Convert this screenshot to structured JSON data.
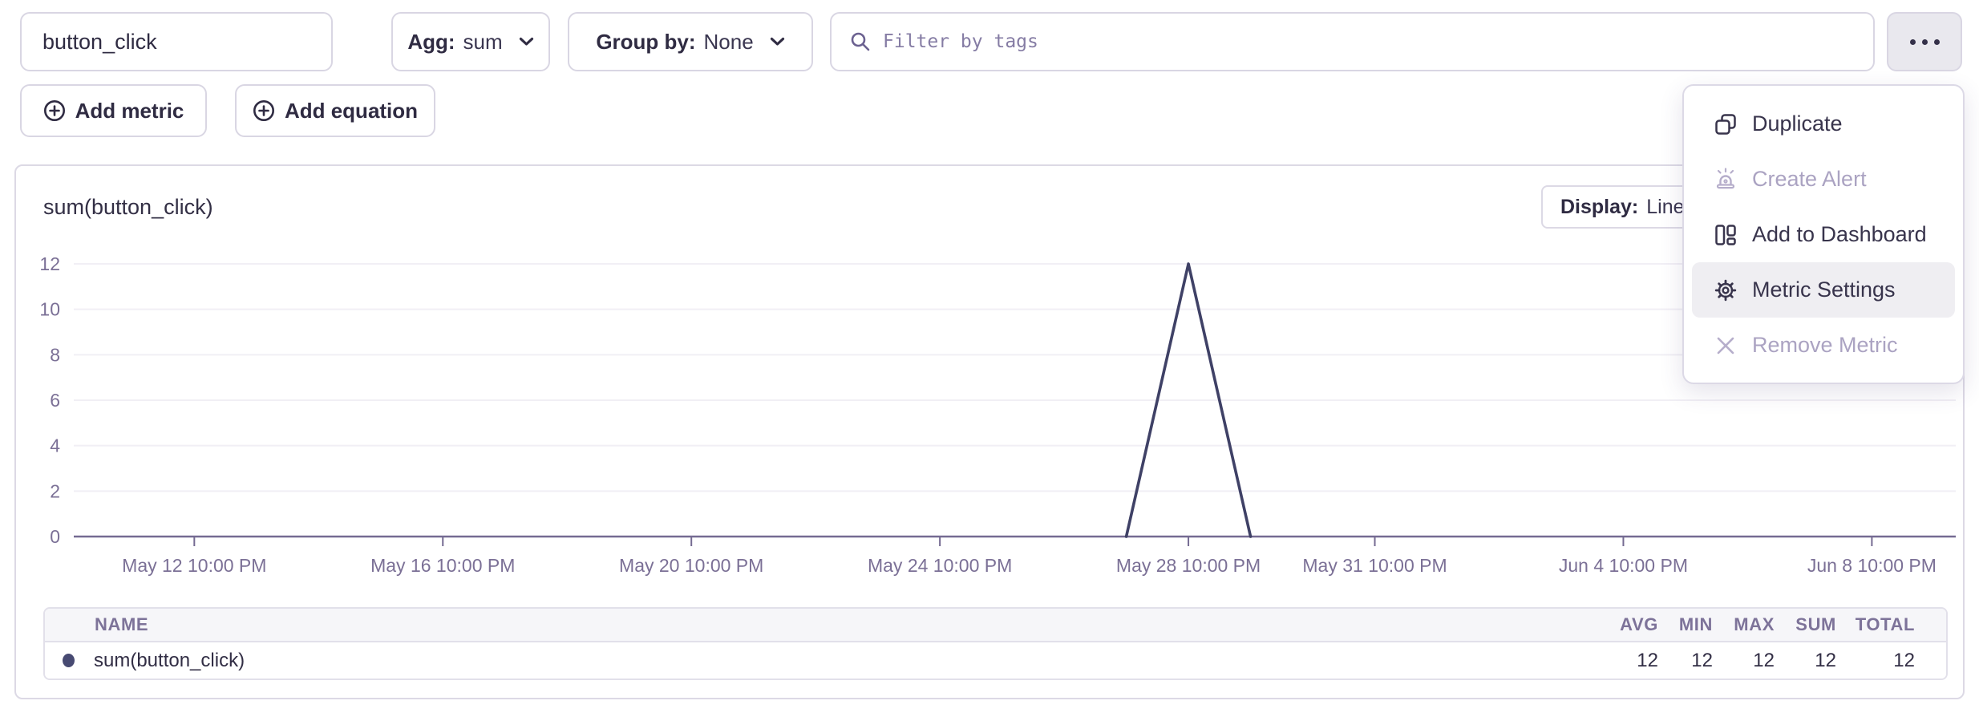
{
  "toolbar": {
    "metric_name": "button_click",
    "agg_label": "Agg:",
    "agg_value": "sum",
    "groupby_label": "Group by:",
    "groupby_value": "None",
    "filter_placeholder": "Filter by tags"
  },
  "actions": {
    "add_metric": "Add metric",
    "add_equation": "Add equation"
  },
  "panel": {
    "title": "sum(button_click)",
    "display_label": "Display:",
    "display_value": "Line"
  },
  "menu": {
    "items": [
      {
        "label": "Duplicate",
        "icon": "copy-icon",
        "disabled": false,
        "highlighted": false
      },
      {
        "label": "Create Alert",
        "icon": "alert-icon",
        "disabled": true,
        "highlighted": false
      },
      {
        "label": "Add to Dashboard",
        "icon": "dashboard-icon",
        "disabled": false,
        "highlighted": false
      },
      {
        "label": "Metric Settings",
        "icon": "gear-icon",
        "disabled": false,
        "highlighted": true
      },
      {
        "label": "Remove Metric",
        "icon": "close-icon",
        "disabled": true,
        "highlighted": false
      }
    ]
  },
  "chart_data": {
    "type": "line",
    "title": "sum(button_click)",
    "x_axis": {
      "unit": "days since May 12 10:00 PM",
      "range": [
        -1.94,
        28.35
      ],
      "ticks": [
        {
          "pos": 0,
          "label": "May 12 10:00 PM"
        },
        {
          "pos": 4,
          "label": "May 16 10:00 PM"
        },
        {
          "pos": 8,
          "label": "May 20 10:00 PM"
        },
        {
          "pos": 12,
          "label": "May 24 10:00 PM"
        },
        {
          "pos": 16,
          "label": "May 28 10:00 PM"
        },
        {
          "pos": 19,
          "label": "May 31 10:00 PM"
        },
        {
          "pos": 23,
          "label": "Jun 4 10:00 PM"
        },
        {
          "pos": 27,
          "label": "Jun 8 10:00 PM"
        }
      ]
    },
    "y_axis": {
      "range": [
        0,
        12
      ],
      "ticks": [
        0,
        2,
        4,
        6,
        8,
        10,
        12
      ]
    },
    "series": [
      {
        "name": "sum(button_click)",
        "color": "#3f4166",
        "points": [
          {
            "x": 15,
            "y": 0
          },
          {
            "x": 16,
            "y": 12
          },
          {
            "x": 17,
            "y": 0
          }
        ]
      }
    ],
    "grid": "horizontal",
    "legend": "none",
    "style": {
      "line_color": "#3f4166",
      "axis_color": "#756b92",
      "label_color": "#7b7096",
      "grid_color": "#f1eff5"
    }
  },
  "summary_table": {
    "headers": {
      "name": "NAME",
      "avg": "AVG",
      "min": "MIN",
      "max": "MAX",
      "sum": "SUM",
      "total": "TOTAL"
    },
    "rows": [
      {
        "name": "sum(button_click)",
        "color": "#474a72",
        "avg": "12",
        "min": "12",
        "max": "12",
        "sum": "12",
        "total": "12"
      }
    ]
  },
  "colors": {
    "border": "#d9d6e3",
    "accent_line": "#3f4166",
    "disabled_text": "#aba3c2",
    "highlight_bg": "#efeef2",
    "table_header_bg": "#f6f6f9"
  }
}
